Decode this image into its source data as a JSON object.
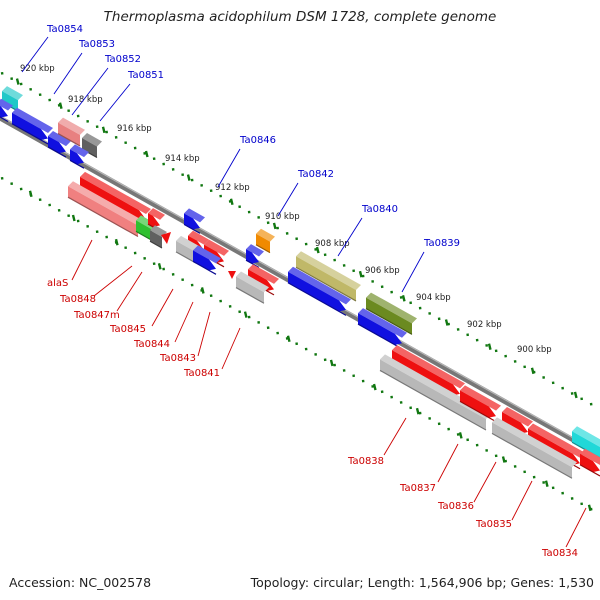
{
  "header": {
    "title": "Thermoplasma acidophilum DSM 1728, complete genome"
  },
  "footer": {
    "accession": "Accession: NC_002578",
    "stats": "Topology: circular; Length: 1,564,906 bp; Genes: 1,530"
  },
  "colors": {
    "forward_label": "#0000cc",
    "reverse_label": "#cc0000",
    "tick": "#117711",
    "backbone": "#777777"
  },
  "scale_labels": [
    "920 kbp",
    "918 kbp",
    "916 kbp",
    "914 kbp",
    "912 kbp",
    "910 kbp",
    "908 kbp",
    "906 kbp",
    "904 kbp",
    "902 kbp",
    "900 kbp"
  ],
  "forward_genes": [
    "Ta0854",
    "Ta0853",
    "Ta0852",
    "Ta0851",
    "Ta0846",
    "Ta0842",
    "Ta0840",
    "Ta0839"
  ],
  "reverse_genes": [
    "alaS",
    "Ta0848",
    "Ta0847m",
    "Ta0845",
    "Ta0844",
    "Ta0843",
    "Ta0841",
    "Ta0838",
    "Ta0837",
    "Ta0836",
    "Ta0835",
    "Ta0834"
  ]
}
